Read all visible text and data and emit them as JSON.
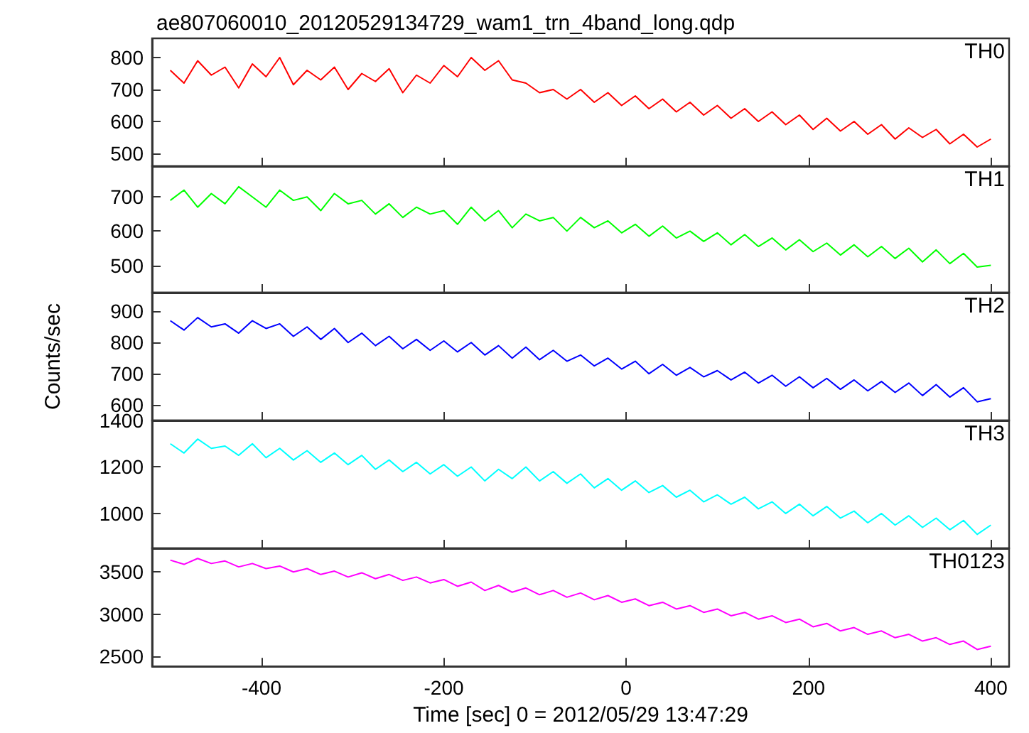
{
  "chart_data": [
    {
      "type": "line",
      "title": "ae807060010_20120529134729_wam1_trn_4band_long.qdp",
      "x": [
        -500,
        -485,
        -470,
        -455,
        -440,
        -425,
        -410,
        -395,
        -380,
        -365,
        -350,
        -335,
        -320,
        -305,
        -290,
        -275,
        -260,
        -245,
        -230,
        -215,
        -200,
        -185,
        -170,
        -155,
        -140,
        -125,
        -110,
        -95,
        -80,
        -65,
        -50,
        -35,
        -20,
        -5,
        10,
        25,
        40,
        55,
        70,
        85,
        100,
        115,
        130,
        145,
        160,
        175,
        190,
        205,
        220,
        235,
        250,
        265,
        280,
        295,
        310,
        325,
        340,
        355,
        370,
        385,
        400
      ],
      "xlim": [
        -520,
        420
      ],
      "xticks": [
        -400,
        -200,
        0,
        200,
        400
      ],
      "ylim": [
        460,
        860
      ],
      "yticks": [
        500,
        600,
        700,
        800
      ],
      "grid": false,
      "marker": "none",
      "tick_labels": "y",
      "series": [
        {
          "name": "TH0",
          "color": "#ff0000",
          "values": [
            760,
            720,
            790,
            745,
            770,
            705,
            780,
            740,
            800,
            715,
            760,
            730,
            770,
            700,
            750,
            725,
            765,
            690,
            745,
            720,
            775,
            740,
            800,
            760,
            790,
            730,
            720,
            690,
            700,
            670,
            700,
            660,
            690,
            650,
            680,
            640,
            670,
            630,
            660,
            620,
            650,
            610,
            640,
            600,
            630,
            590,
            620,
            575,
            610,
            570,
            600,
            560,
            590,
            545,
            580,
            550,
            575,
            530,
            560,
            520,
            545
          ]
        }
      ]
    },
    {
      "type": "line",
      "x": [
        -500,
        -485,
        -470,
        -455,
        -440,
        -425,
        -410,
        -395,
        -380,
        -365,
        -350,
        -335,
        -320,
        -305,
        -290,
        -275,
        -260,
        -245,
        -230,
        -215,
        -200,
        -185,
        -170,
        -155,
        -140,
        -125,
        -110,
        -95,
        -80,
        -65,
        -50,
        -35,
        -20,
        -5,
        10,
        25,
        40,
        55,
        70,
        85,
        100,
        115,
        130,
        145,
        160,
        175,
        190,
        205,
        220,
        235,
        250,
        265,
        280,
        295,
        310,
        325,
        340,
        355,
        370,
        385,
        400
      ],
      "xlim": [
        -520,
        420
      ],
      "xticks": [
        -400,
        -200,
        0,
        200,
        400
      ],
      "ylim": [
        420,
        790
      ],
      "yticks": [
        500,
        600,
        700
      ],
      "grid": false,
      "marker": "none",
      "tick_labels": "y",
      "series": [
        {
          "name": "TH1",
          "color": "#00ff00",
          "values": [
            690,
            720,
            670,
            710,
            680,
            730,
            700,
            670,
            720,
            690,
            700,
            660,
            710,
            680,
            690,
            650,
            680,
            640,
            670,
            650,
            660,
            620,
            670,
            630,
            660,
            610,
            650,
            630,
            640,
            600,
            640,
            610,
            630,
            595,
            620,
            585,
            615,
            580,
            600,
            570,
            595,
            560,
            590,
            555,
            580,
            545,
            575,
            540,
            565,
            530,
            560,
            525,
            555,
            520,
            550,
            510,
            545,
            505,
            535,
            495,
            500
          ]
        }
      ]
    },
    {
      "type": "line",
      "ylabel": "Counts/sec",
      "x": [
        -500,
        -485,
        -470,
        -455,
        -440,
        -425,
        -410,
        -395,
        -380,
        -365,
        -350,
        -335,
        -320,
        -305,
        -290,
        -275,
        -260,
        -245,
        -230,
        -215,
        -200,
        -185,
        -170,
        -155,
        -140,
        -125,
        -110,
        -95,
        -80,
        -65,
        -50,
        -35,
        -20,
        -5,
        10,
        25,
        40,
        55,
        70,
        85,
        100,
        115,
        130,
        145,
        160,
        175,
        190,
        205,
        220,
        235,
        250,
        265,
        280,
        295,
        310,
        325,
        340,
        355,
        370,
        385,
        400
      ],
      "xlim": [
        -520,
        420
      ],
      "xticks": [
        -400,
        -200,
        0,
        200,
        400
      ],
      "ylim": [
        550,
        960
      ],
      "yticks": [
        600,
        700,
        800,
        900
      ],
      "grid": false,
      "marker": "none",
      "tick_labels": "y",
      "series": [
        {
          "name": "TH2",
          "color": "#0000ff",
          "values": [
            870,
            840,
            880,
            850,
            860,
            830,
            870,
            845,
            860,
            820,
            850,
            810,
            845,
            800,
            830,
            790,
            820,
            780,
            810,
            775,
            805,
            770,
            800,
            760,
            790,
            750,
            785,
            745,
            775,
            740,
            760,
            725,
            750,
            715,
            740,
            700,
            730,
            695,
            720,
            690,
            710,
            680,
            705,
            670,
            695,
            660,
            690,
            655,
            685,
            650,
            680,
            645,
            675,
            640,
            670,
            630,
            665,
            625,
            655,
            610,
            620
          ]
        }
      ]
    },
    {
      "type": "line",
      "x": [
        -500,
        -485,
        -470,
        -455,
        -440,
        -425,
        -410,
        -395,
        -380,
        -365,
        -350,
        -335,
        -320,
        -305,
        -290,
        -275,
        -260,
        -245,
        -230,
        -215,
        -200,
        -185,
        -170,
        -155,
        -140,
        -125,
        -110,
        -95,
        -80,
        -65,
        -50,
        -35,
        -20,
        -5,
        10,
        25,
        40,
        55,
        70,
        85,
        100,
        115,
        130,
        145,
        160,
        175,
        190,
        205,
        220,
        235,
        250,
        265,
        280,
        295,
        310,
        325,
        340,
        355,
        370,
        385,
        400
      ],
      "xlim": [
        -520,
        420
      ],
      "xticks": [
        -400,
        -200,
        0,
        200,
        400
      ],
      "ylim": [
        850,
        1400
      ],
      "yticks": [
        1000,
        1200,
        1400
      ],
      "grid": false,
      "marker": "none",
      "tick_labels": "y",
      "series": [
        {
          "name": "TH3",
          "color": "#00ffff",
          "values": [
            1300,
            1260,
            1320,
            1280,
            1290,
            1250,
            1300,
            1240,
            1280,
            1230,
            1270,
            1220,
            1260,
            1210,
            1250,
            1190,
            1230,
            1180,
            1220,
            1170,
            1210,
            1160,
            1200,
            1140,
            1190,
            1150,
            1200,
            1140,
            1180,
            1130,
            1170,
            1110,
            1150,
            1100,
            1140,
            1090,
            1120,
            1070,
            1100,
            1050,
            1080,
            1040,
            1070,
            1020,
            1050,
            1000,
            1040,
            990,
            1030,
            980,
            1010,
            960,
            1000,
            950,
            990,
            940,
            980,
            930,
            970,
            910,
            950
          ]
        }
      ]
    },
    {
      "type": "line",
      "xlabel": "Time [sec] 0 = 2012/05/29 13:47:29",
      "x": [
        -500,
        -485,
        -470,
        -455,
        -440,
        -425,
        -410,
        -395,
        -380,
        -365,
        -350,
        -335,
        -320,
        -305,
        -290,
        -275,
        -260,
        -245,
        -230,
        -215,
        -200,
        -185,
        -170,
        -155,
        -140,
        -125,
        -110,
        -95,
        -80,
        -65,
        -50,
        -35,
        -20,
        -5,
        10,
        25,
        40,
        55,
        70,
        85,
        100,
        115,
        130,
        145,
        160,
        175,
        190,
        205,
        220,
        235,
        250,
        265,
        280,
        295,
        310,
        325,
        340,
        355,
        370,
        385,
        400
      ],
      "xlim": [
        -520,
        420
      ],
      "xticks": [
        -400,
        -200,
        0,
        200,
        400
      ],
      "ylim": [
        2380,
        3780
      ],
      "yticks": [
        2500,
        3000,
        3500
      ],
      "grid": false,
      "marker": "none",
      "series": [
        {
          "name": "TH0123",
          "color": "#ff00ff",
          "values": [
            3640,
            3590,
            3660,
            3600,
            3630,
            3560,
            3600,
            3540,
            3570,
            3500,
            3540,
            3470,
            3510,
            3440,
            3490,
            3420,
            3470,
            3400,
            3440,
            3370,
            3410,
            3330,
            3380,
            3280,
            3340,
            3260,
            3310,
            3230,
            3280,
            3200,
            3250,
            3170,
            3220,
            3140,
            3180,
            3100,
            3140,
            3060,
            3100,
            3020,
            3060,
            2980,
            3020,
            2940,
            2980,
            2900,
            2940,
            2850,
            2890,
            2800,
            2840,
            2760,
            2800,
            2720,
            2760,
            2680,
            2720,
            2640,
            2680,
            2580,
            2620
          ]
        }
      ]
    }
  ]
}
